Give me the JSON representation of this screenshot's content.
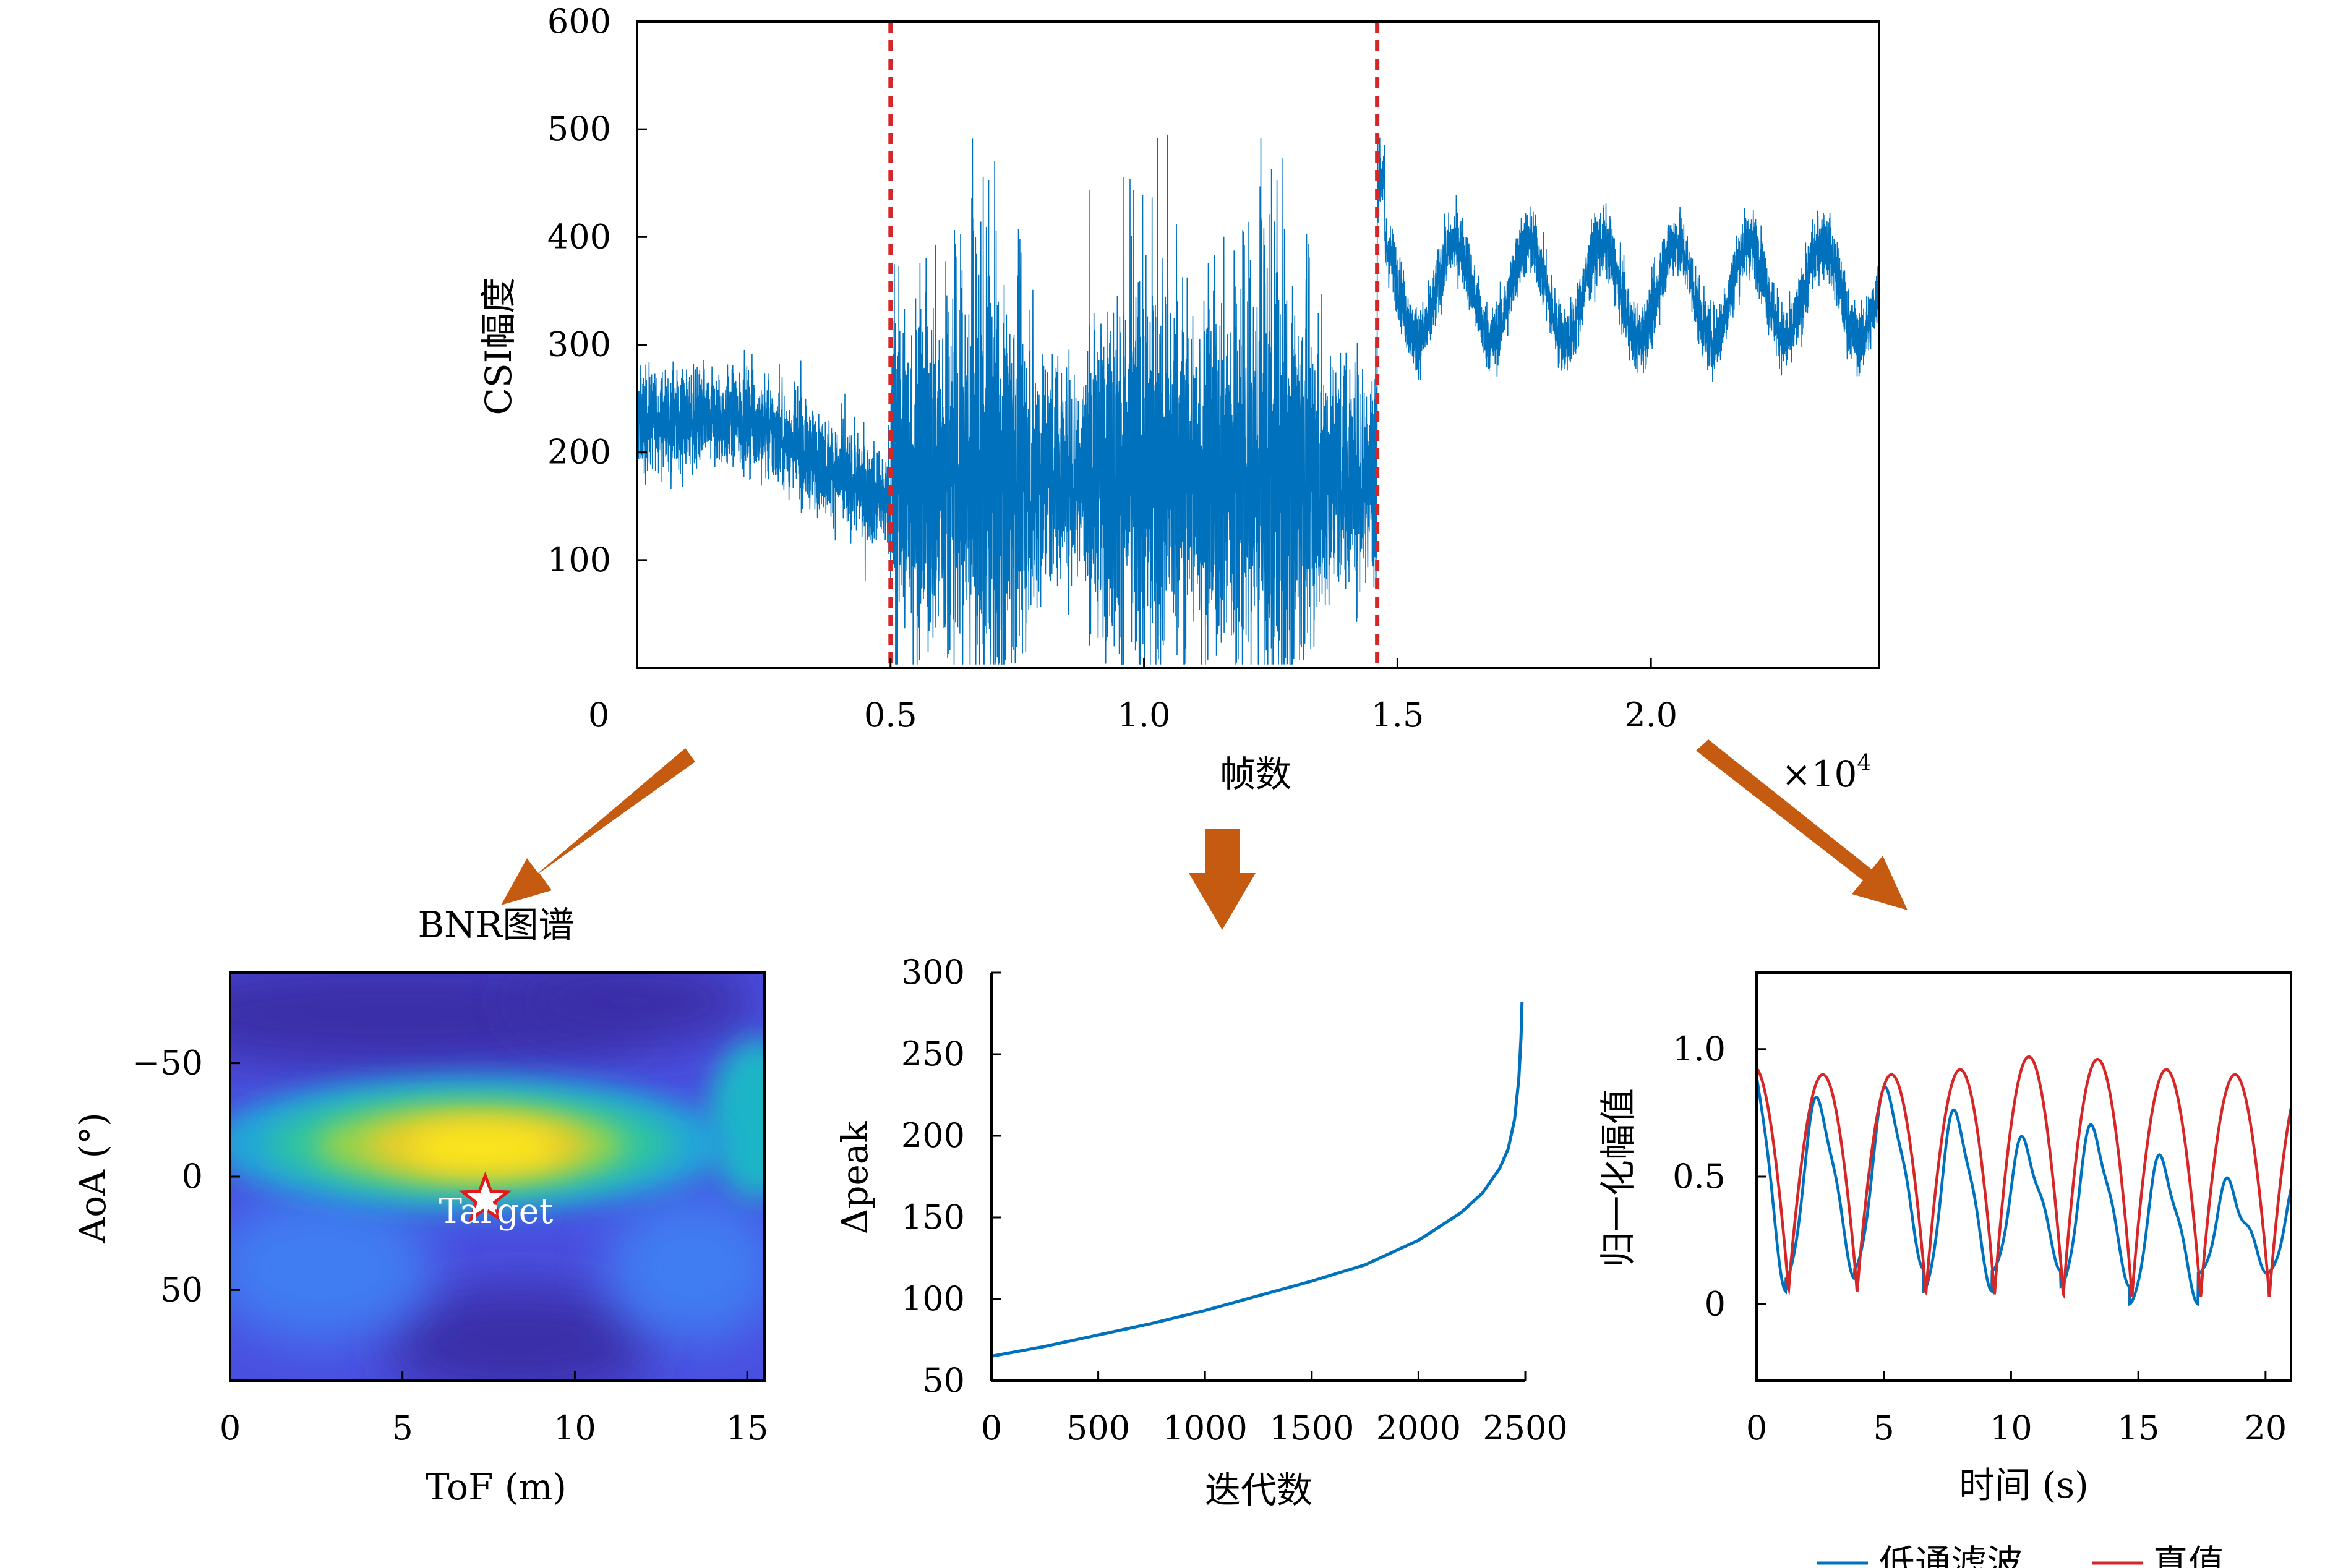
{
  "colors": {
    "blue": "#0072BD",
    "red": "#D62728",
    "orange": "#C55A11",
    "star": "#E31A1C"
  },
  "chart_data": [
    {
      "type": "line",
      "ylabel": "CSI幅度",
      "xlabel": "帧数",
      "x_multiplier": "×10",
      "x_multiplier_exp": "4",
      "xticks": [
        "0",
        "0.5",
        "1.0",
        "1.5",
        "2.0"
      ],
      "yticks": [
        "100",
        "200",
        "300",
        "400",
        "500",
        "600"
      ],
      "xlim": [
        0,
        24500
      ],
      "ylim": [
        0,
        600
      ],
      "vlines": [
        5000,
        14600
      ],
      "segments": [
        {
          "x_start": 0,
          "x_end": 5000,
          "description_mean": 230,
          "mean_end": 150,
          "noise": 45
        },
        {
          "x_start": 5000,
          "x_end": 14600,
          "mean": 180,
          "noise": 160,
          "max": 500
        },
        {
          "x_start": 14600,
          "x_end": 24500,
          "mean": 350,
          "amplitude": 45,
          "period_frames": 1450,
          "noise": 35
        }
      ]
    },
    {
      "type": "heatmap",
      "title": "BNR图谱",
      "xlabel": "ToF (m)",
      "ylabel": "AoA (°)",
      "xticks": [
        "0",
        "5",
        "10",
        "15"
      ],
      "yticks": [
        "−50",
        "0",
        "50"
      ],
      "xlim": [
        0,
        15.5
      ],
      "ylim": [
        -90,
        90
      ],
      "peak": {
        "tof": 7.4,
        "aoa": 10
      },
      "annotation": "Target"
    },
    {
      "type": "line",
      "xlabel": "迭代数",
      "ylabel": "Δpeak",
      "xticks": [
        "0",
        "500",
        "1000",
        "1500",
        "2000",
        "2500"
      ],
      "yticks": [
        "50",
        "100",
        "150",
        "200",
        "250",
        "300"
      ],
      "xlim": [
        0,
        2500
      ],
      "ylim": [
        50,
        300
      ],
      "series": [
        {
          "name": "",
          "points": [
            [
              0,
              65
            ],
            [
              250,
              71
            ],
            [
              500,
              78
            ],
            [
              750,
              85
            ],
            [
              1000,
              93
            ],
            [
              1250,
              102
            ],
            [
              1500,
              111
            ],
            [
              1750,
              121
            ],
            [
              2000,
              136
            ],
            [
              2200,
              153
            ],
            [
              2300,
              165
            ],
            [
              2380,
              180
            ],
            [
              2420,
              192
            ],
            [
              2450,
              210
            ],
            [
              2470,
              235
            ],
            [
              2480,
              260
            ],
            [
              2485,
              282
            ]
          ]
        }
      ]
    },
    {
      "type": "line",
      "xlabel": "时间 (s)",
      "ylabel": "归一化幅值",
      "xticks": [
        "0",
        "5",
        "10",
        "15",
        "20"
      ],
      "yticks": [
        "0",
        "0.5",
        "1.0"
      ],
      "xlim": [
        0,
        21
      ],
      "ylim": [
        -0.3,
        1.3
      ],
      "series": [
        {
          "name": "低通滤波",
          "color": "#0072BD",
          "period_s": 2.7,
          "peaks": [
            1.0,
            0.78,
            0.82,
            0.73,
            0.62,
            0.67,
            0.55,
            0.45
          ],
          "troughs": [
            0.05,
            0.1,
            0.14,
            0.05,
            0.13,
            0.07,
            0.0,
            0.12
          ]
        },
        {
          "name": "真值",
          "color": "#D62728",
          "period_s": 2.7,
          "peaks": [
            0.93,
            0.9,
            0.9,
            0.92,
            0.97,
            0.96,
            0.92,
            0.9
          ],
          "troughs": [
            0.05,
            0.04,
            0.04,
            0.03,
            0.03,
            0.02,
            0.02,
            0.02
          ]
        }
      ]
    }
  ]
}
